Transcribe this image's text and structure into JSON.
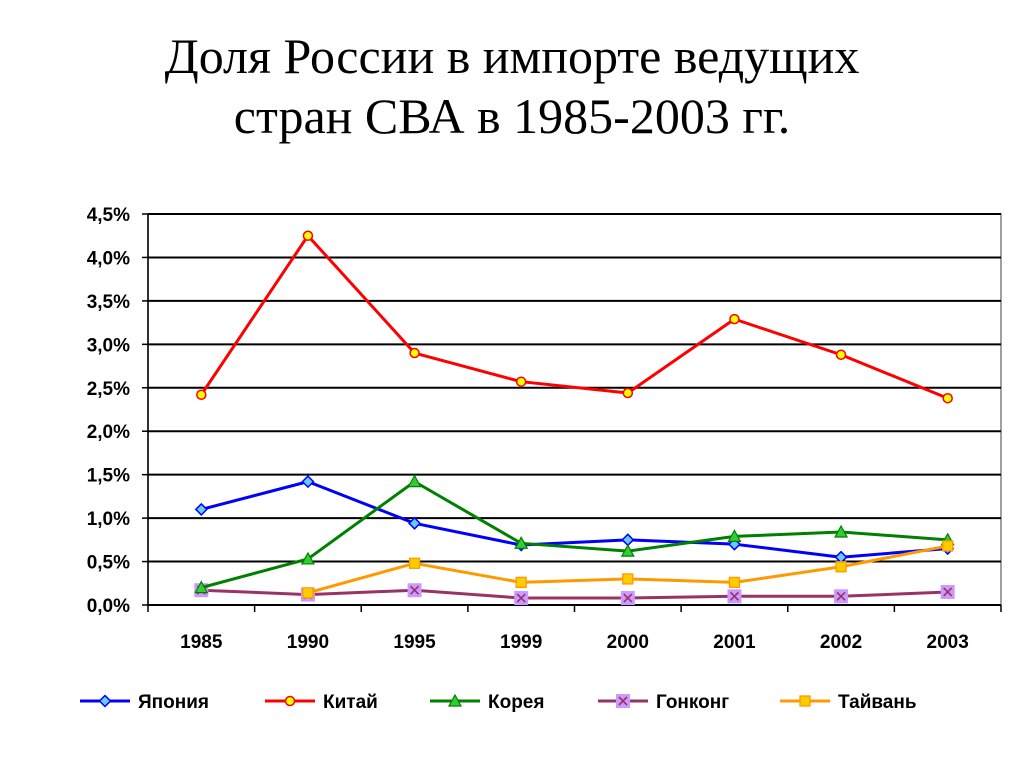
{
  "slide": {
    "title_line1": "Доля России в импорте ведущих",
    "title_line2": "стран СВА в 1985-2003 гг."
  },
  "chart_data": {
    "type": "line",
    "title": "",
    "xlabel": "",
    "ylabel": "",
    "categories": [
      "1985",
      "1990",
      "1995",
      "1999",
      "2000",
      "2001",
      "2002",
      "2003"
    ],
    "ylim": [
      0,
      4.5
    ],
    "y_ticks": [
      "0,0%",
      "0,5%",
      "1,0%",
      "1,5%",
      "2,0%",
      "2,5%",
      "3,0%",
      "3,5%",
      "4,0%",
      "4,5%"
    ],
    "y_tick_values": [
      0,
      0.5,
      1.0,
      1.5,
      2.0,
      2.5,
      3.0,
      3.5,
      4.0,
      4.5
    ],
    "grid": true,
    "legend_position": "bottom",
    "series": [
      {
        "name": "Япония",
        "color": "#0000ff",
        "marker": "diamond",
        "marker_fill": "#66ccff",
        "values": [
          1.1,
          1.42,
          0.94,
          0.69,
          0.75,
          0.7,
          0.55,
          0.65
        ]
      },
      {
        "name": "Китай",
        "color": "#ff0000",
        "marker": "circle",
        "marker_fill": "#ffff00",
        "values": [
          2.42,
          4.25,
          2.9,
          2.57,
          2.44,
          3.29,
          2.88,
          2.38
        ]
      },
      {
        "name": "Корея",
        "color": "#008000",
        "marker": "triangle",
        "marker_fill": "#33cc33",
        "values": [
          0.2,
          0.53,
          1.42,
          0.71,
          0.62,
          0.79,
          0.84,
          0.75
        ]
      },
      {
        "name": "Гонконг",
        "color": "#993366",
        "marker": "x-square",
        "marker_fill": "#cc99ff",
        "values": [
          0.17,
          0.12,
          0.17,
          0.08,
          0.08,
          0.1,
          0.1,
          0.15
        ]
      },
      {
        "name": "Тайвань",
        "color": "#ff9900",
        "marker": "square",
        "marker_fill": "#ffcc00",
        "values": [
          null,
          0.14,
          0.48,
          0.26,
          0.3,
          0.26,
          0.44,
          0.68
        ]
      }
    ]
  }
}
